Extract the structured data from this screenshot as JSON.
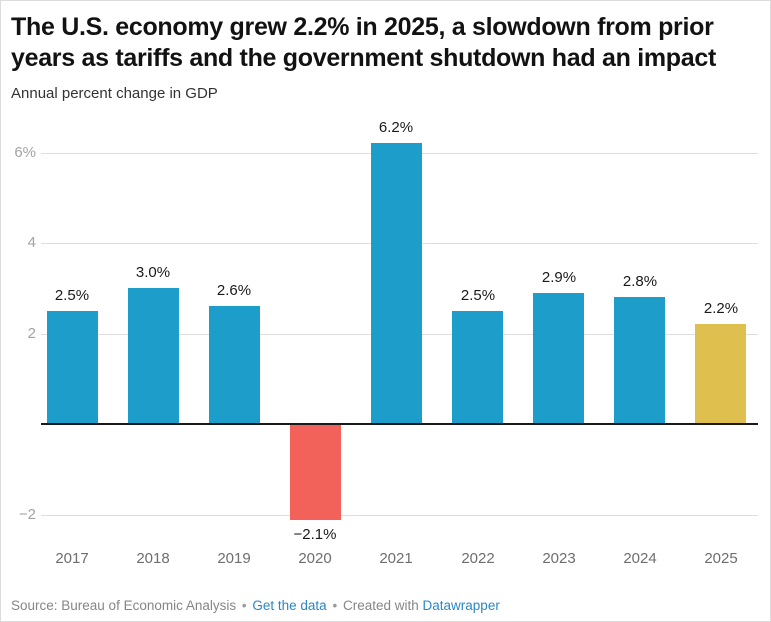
{
  "header": {
    "title": "The U.S. economy grew 2.2% in 2025, a slowdown from prior years as tariffs and the government shutdown had an impact",
    "subtitle": "Annual percent change in GDP"
  },
  "chart_data": {
    "type": "bar",
    "title": "The U.S. economy grew 2.2% in 2025, a slowdown from prior years as tariffs and the government shutdown had an impact",
    "subtitle": "Annual percent change in GDP",
    "categories": [
      "2017",
      "2018",
      "2019",
      "2020",
      "2021",
      "2022",
      "2023",
      "2024",
      "2025"
    ],
    "values": [
      2.5,
      3.0,
      2.6,
      -2.1,
      6.2,
      2.5,
      2.9,
      2.8,
      2.2
    ],
    "bar_labels": [
      "2.5%",
      "3.0%",
      "2.6%",
      "−2.1%",
      "6.2%",
      "2.5%",
      "2.9%",
      "2.8%",
      "2.2%"
    ],
    "bar_colors": [
      "#1d9dca",
      "#1d9dca",
      "#1d9dca",
      "#f2625a",
      "#1d9dca",
      "#1d9dca",
      "#1d9dca",
      "#1d9dca",
      "#dfc04f"
    ],
    "palette": {
      "positive_blue": "#1d9dca",
      "negative_red": "#f2625a",
      "highlight_gold": "#dfc04f"
    },
    "y_ticks": [
      {
        "value": 6,
        "label": "6%"
      },
      {
        "value": 4,
        "label": "4"
      },
      {
        "value": 2,
        "label": "2"
      },
      {
        "value": -2,
        "label": "−2"
      }
    ],
    "ylim": [
      -2.9,
      6.9
    ],
    "grid": true,
    "legend": "none",
    "xlabel": "",
    "ylabel": ""
  },
  "footer": {
    "source": "Source: Bureau of Economic Analysis",
    "separator": "•",
    "get_data_link": "Get the data",
    "created_with": "Created with",
    "datawrapper_link": "Datawrapper",
    "link_color": "#2b87c4",
    "text_color": "#868686"
  }
}
